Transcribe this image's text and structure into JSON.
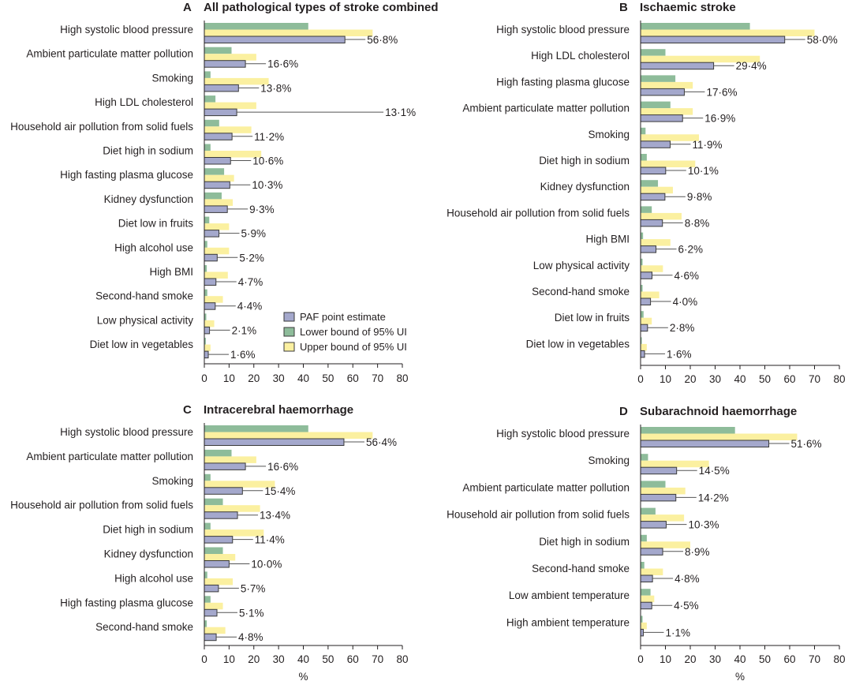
{
  "chart_data": [
    {
      "panel_letter": "A",
      "title": "All pathological types of stroke combined",
      "type": "bar",
      "orientation": "horizontal",
      "categories": [
        "High systolic blood pressure",
        "Ambient particulate matter pollution",
        "Smoking",
        "High LDL cholesterol",
        "Household air pollution from solid fuels",
        "Diet high in sodium",
        "High fasting plasma glucose",
        "Kidney dysfunction",
        "Diet low in fruits",
        "High alcohol use",
        "High BMI",
        "Second-hand smoke",
        "Low physical activity",
        "Diet low in vegetables"
      ],
      "series": [
        {
          "name": "Lower bound of 95% UI",
          "values": [
            42,
            11,
            2.5,
            4.5,
            6,
            2.5,
            8,
            7,
            2,
            1.2,
            1,
            1.2,
            0.8,
            0.6
          ]
        },
        {
          "name": "Upper bound of 95% UI",
          "values": [
            68,
            21,
            26,
            21,
            19,
            23,
            12,
            11.5,
            10,
            10,
            9.5,
            7.5,
            4,
            2.5
          ]
        },
        {
          "name": "PAF point estimate",
          "values": [
            56.8,
            16.6,
            13.8,
            13.1,
            11.2,
            10.6,
            10.3,
            9.3,
            5.9,
            5.2,
            4.7,
            4.4,
            2.1,
            1.6
          ]
        }
      ],
      "value_labels": [
        "56·8%",
        "16·6%",
        "13·8%",
        "13·1%",
        "11·2%",
        "10·6%",
        "10·3%",
        "9·3%",
        "5·9%",
        "5·2%",
        "4·7%",
        "4·4%",
        "2·1%",
        "1·6%"
      ],
      "xlim": [
        0,
        80
      ],
      "xticks": [
        "0",
        "10",
        "20",
        "30",
        "40",
        "50",
        "60",
        "70",
        "80"
      ],
      "xlabel": "",
      "legend": {
        "position": "bottom-right",
        "items": [
          {
            "label": "PAF point estimate",
            "color": "#a4a8cc"
          },
          {
            "label": "Lower bound of 95% UI",
            "color": "#8ebc9a"
          },
          {
            "label": "Upper bound of 95% UI",
            "color": "#fbf0a0"
          }
        ]
      }
    },
    {
      "panel_letter": "B",
      "title": "Ischaemic stroke",
      "type": "bar",
      "orientation": "horizontal",
      "categories": [
        "High systolic blood pressure",
        "High LDL cholesterol",
        "High fasting plasma glucose",
        "Ambient particulate matter pollution",
        "Smoking",
        "Diet high in sodium",
        "Kidney dysfunction",
        "Household air pollution from solid fuels",
        "High BMI",
        "Low physical activity",
        "Second-hand smoke",
        "Diet low in fruits",
        "Diet low in vegetables"
      ],
      "series": [
        {
          "name": "Lower bound of 95% UI",
          "values": [
            44,
            10,
            14,
            12,
            2,
            2.5,
            7,
            4.5,
            1,
            0.8,
            0.8,
            1.2,
            0.5
          ]
        },
        {
          "name": "Upper bound of 95% UI",
          "values": [
            70,
            48,
            21,
            21,
            23.5,
            22,
            13,
            16.5,
            12,
            9,
            7.5,
            4.5,
            2.5
          ]
        },
        {
          "name": "PAF point estimate",
          "values": [
            58.0,
            29.4,
            17.6,
            16.9,
            11.9,
            10.1,
            9.8,
            8.8,
            6.2,
            4.6,
            4.0,
            2.8,
            1.6
          ]
        }
      ],
      "value_labels": [
        "58·0%",
        "29·4%",
        "17·6%",
        "16·9%",
        "11·9%",
        "10·1%",
        "9·8%",
        "8·8%",
        "6·2%",
        "4·6%",
        "4·0%",
        "2·8%",
        "1·6%"
      ],
      "xlim": [
        0,
        80
      ],
      "xticks": [
        "0",
        "10",
        "20",
        "30",
        "40",
        "50",
        "60",
        "70",
        "80"
      ],
      "xlabel": ""
    },
    {
      "panel_letter": "C",
      "title": "Intracerebral haemorrhage",
      "type": "bar",
      "orientation": "horizontal",
      "categories": [
        "High systolic blood pressure",
        "Ambient particulate matter pollution",
        "Smoking",
        "Household air pollution from solid fuels",
        "Diet high in sodium",
        "Kidney dysfunction",
        "High alcohol use",
        "High fasting plasma glucose",
        "Second-hand smoke"
      ],
      "series": [
        {
          "name": "Lower bound of 95% UI",
          "values": [
            42,
            11,
            2.5,
            7.5,
            2.5,
            7.5,
            1.2,
            2.5,
            1
          ]
        },
        {
          "name": "Upper bound of 95% UI",
          "values": [
            68,
            21,
            28.5,
            22.5,
            24,
            12.5,
            11.5,
            7.5,
            8.5
          ]
        },
        {
          "name": "PAF point estimate",
          "values": [
            56.4,
            16.6,
            15.4,
            13.4,
            11.4,
            10.0,
            5.7,
            5.1,
            4.8
          ]
        }
      ],
      "value_labels": [
        "56·4%",
        "16·6%",
        "15·4%",
        "13·4%",
        "11·4%",
        "10·0%",
        "5·7%",
        "5·1%",
        "4·8%"
      ],
      "xlim": [
        0,
        80
      ],
      "xticks": [
        "0",
        "10",
        "20",
        "30",
        "40",
        "50",
        "60",
        "70",
        "80"
      ],
      "xlabel": "%"
    },
    {
      "panel_letter": "D",
      "title": "Subarachnoid haemorrhage",
      "type": "bar",
      "orientation": "horizontal",
      "categories": [
        "High systolic blood pressure",
        "Smoking",
        "Ambient particulate matter pollution",
        "Household air pollution from solid fuels",
        "Diet high in sodium",
        "Second-hand smoke",
        "Low ambient temperature",
        "High ambient temperature"
      ],
      "series": [
        {
          "name": "Lower bound of 95% UI",
          "values": [
            38,
            3,
            10,
            6,
            2.5,
            1.5,
            4,
            0.8
          ]
        },
        {
          "name": "Upper bound of 95% UI",
          "values": [
            63,
            27.5,
            18,
            17.5,
            20,
            9,
            5.5,
            2.5
          ]
        },
        {
          "name": "PAF point estimate",
          "values": [
            51.6,
            14.5,
            14.2,
            10.3,
            8.9,
            4.8,
            4.5,
            1.1
          ]
        }
      ],
      "value_labels": [
        "51·6%",
        "14·5%",
        "14·2%",
        "10·3%",
        "8·9%",
        "4·8%",
        "4·5%",
        "1·1%"
      ],
      "xlim": [
        0,
        80
      ],
      "xticks": [
        "0",
        "10",
        "20",
        "30",
        "40",
        "50",
        "60",
        "70",
        "80"
      ],
      "xlabel": "%"
    }
  ]
}
